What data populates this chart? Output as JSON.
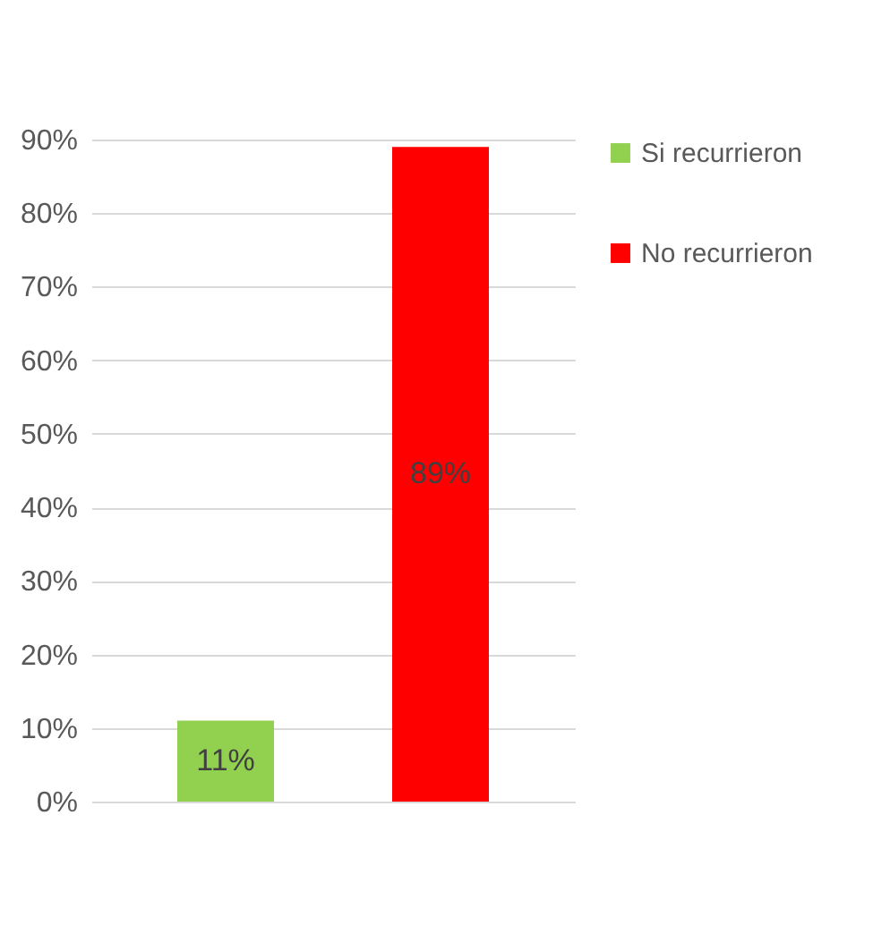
{
  "chart_data": {
    "type": "bar",
    "categories": [
      null,
      null
    ],
    "series": [
      {
        "name": "Si recurrieron",
        "color": "#92d050",
        "values": [
          11,
          null
        ],
        "value_labels": [
          "11%",
          null
        ]
      },
      {
        "name": "No recurrieron",
        "color": "#ff0000",
        "values": [
          null,
          89
        ],
        "value_labels": [
          null,
          "89%"
        ]
      }
    ],
    "ylim": [
      0,
      90
    ],
    "yticks": [
      {
        "value": 0,
        "label": "0%"
      },
      {
        "value": 10,
        "label": "10%"
      },
      {
        "value": 20,
        "label": "20%"
      },
      {
        "value": 30,
        "label": "30%"
      },
      {
        "value": 40,
        "label": "40%"
      },
      {
        "value": 50,
        "label": "50%"
      },
      {
        "value": 60,
        "label": "60%"
      },
      {
        "value": 70,
        "label": "70%"
      },
      {
        "value": 80,
        "label": "80%"
      },
      {
        "value": 90,
        "label": "90%"
      }
    ],
    "grid": "y",
    "legend": "right",
    "tick_labels": "y"
  }
}
